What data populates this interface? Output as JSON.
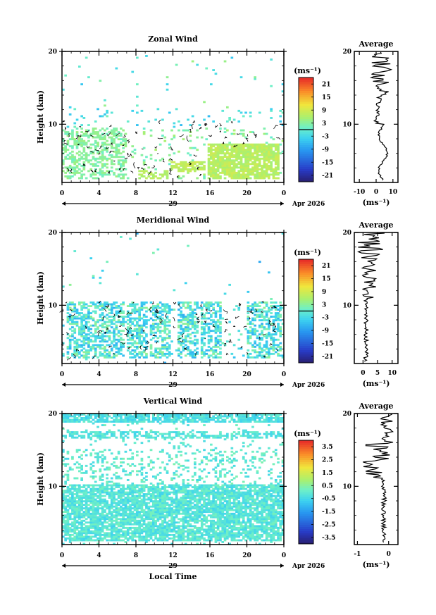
{
  "chart_data": [
    {
      "type": "heatmap",
      "title": "Zonal Wind",
      "ylabel": "Height (km)",
      "y_ticks": [
        "20",
        "10"
      ],
      "ylim": [
        2,
        20
      ],
      "x_ticks": [
        "0",
        "4",
        "8",
        "12",
        "16",
        "20",
        "0"
      ],
      "xlim": [
        0,
        24
      ],
      "day_label": "29",
      "date_label": "Apr 2026",
      "colorbar": {
        "unit": "(ms⁻¹)",
        "ticks": [
          "21",
          "15",
          "9",
          "3",
          "-3",
          "-9",
          "-15",
          "-21"
        ],
        "range": [
          -24,
          24
        ]
      },
      "profile": {
        "title": "Average",
        "xlabel": "(ms⁻¹)",
        "x_ticks": [
          "-10",
          "0",
          "10"
        ],
        "xlim": [
          -13,
          13
        ],
        "y_ticks": [
          "20",
          "10"
        ]
      }
    },
    {
      "type": "heatmap",
      "title": "Meridional Wind",
      "ylabel": "Height (km)",
      "y_ticks": [
        "20",
        "10"
      ],
      "ylim": [
        2,
        20
      ],
      "x_ticks": [
        "0",
        "4",
        "8",
        "12",
        "16",
        "20",
        "0"
      ],
      "xlim": [
        0,
        24
      ],
      "day_label": "29",
      "date_label": "Apr 2026",
      "colorbar": {
        "unit": "(ms⁻¹)",
        "ticks": [
          "21",
          "15",
          "9",
          "3",
          "-3",
          "-9",
          "-15",
          "-21"
        ],
        "range": [
          -24,
          24
        ]
      },
      "profile": {
        "title": "Average",
        "xlabel": "(ms⁻¹)",
        "x_ticks": [
          "0",
          "5",
          "10"
        ],
        "xlim": [
          -3,
          12
        ],
        "y_ticks": [
          "20",
          "10"
        ]
      }
    },
    {
      "type": "heatmap",
      "title": "Vertical Wind",
      "ylabel": "Height (km)",
      "xlabel": "Local Time",
      "y_ticks": [
        "20",
        "10"
      ],
      "ylim": [
        2,
        20
      ],
      "x_ticks": [
        "0",
        "4",
        "8",
        "12",
        "16",
        "20",
        "0"
      ],
      "xlim": [
        0,
        24
      ],
      "day_label": "29",
      "date_label": "Apr 2026",
      "colorbar": {
        "unit": "(ms⁻¹)",
        "ticks": [
          "3.5",
          "2.5",
          "1.5",
          "0.5",
          "-0.5",
          "-1.5",
          "-2.5",
          "-3.5"
        ],
        "range": [
          -4,
          4
        ]
      },
      "profile": {
        "title": "Average",
        "xlabel": "(ms⁻¹)",
        "x_ticks": [
          "-1",
          "0"
        ],
        "xlim": [
          -1.1,
          0.3
        ],
        "y_ticks": [
          "20",
          "10"
        ]
      }
    }
  ]
}
